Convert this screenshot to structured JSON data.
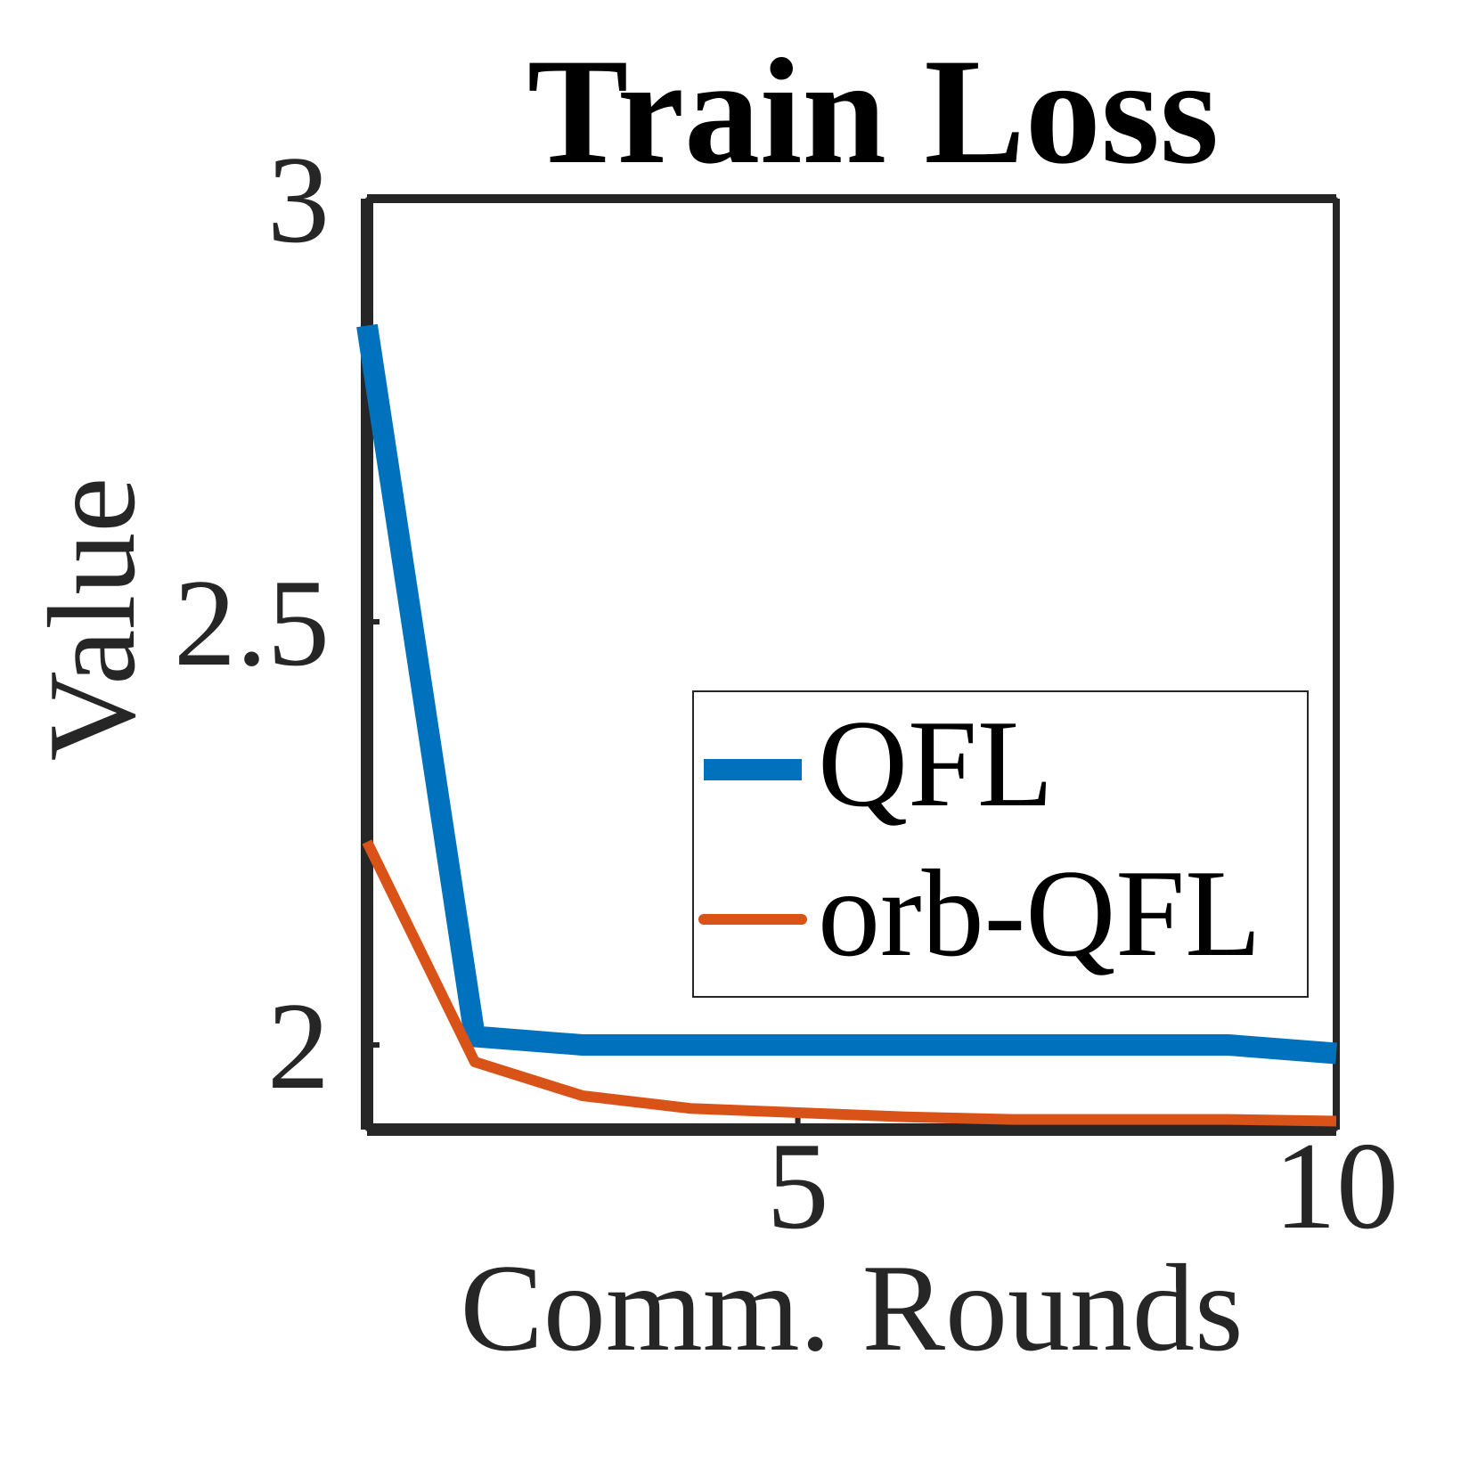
{
  "chart_data": {
    "type": "line",
    "title": "Train Loss",
    "xlabel": "Comm. Rounds",
    "ylabel": "Value",
    "xlim": [
      1,
      10
    ],
    "ylim": [
      1.9,
      3
    ],
    "xticks": [
      5,
      10
    ],
    "yticks": [
      2,
      2.5,
      3
    ],
    "x": [
      1,
      2,
      3,
      4,
      5,
      6,
      7,
      8,
      9,
      10
    ],
    "series": [
      {
        "name": "QFL",
        "color": "#0072BD",
        "values": [
          2.85,
          2.01,
          2.0,
          2.0,
          2.0,
          2.0,
          2.0,
          2.0,
          2.0,
          1.99
        ]
      },
      {
        "name": "orb-QFL",
        "color": "#D95319",
        "values": [
          2.24,
          1.98,
          1.94,
          1.925,
          1.92,
          1.915,
          1.912,
          1.912,
          1.912,
          1.91
        ]
      }
    ],
    "legend": {
      "position": "center-right",
      "entries": [
        "QFL",
        "orb-QFL"
      ]
    },
    "grid": false
  }
}
